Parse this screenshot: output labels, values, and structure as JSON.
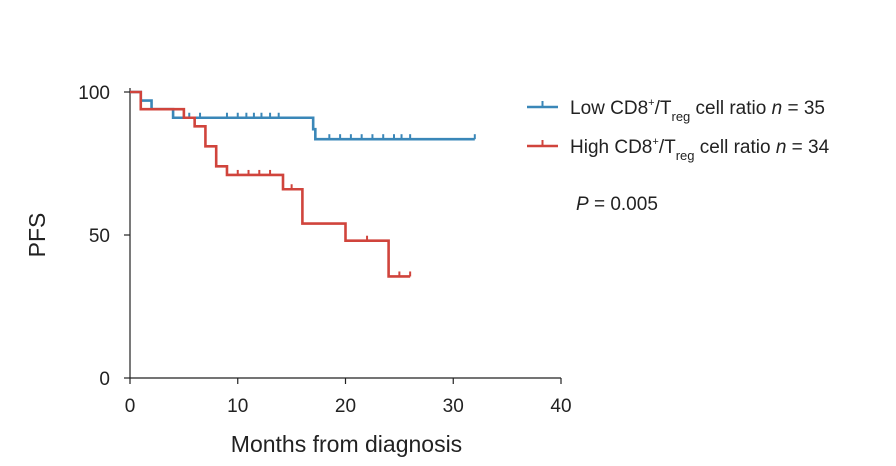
{
  "chart_data": {
    "type": "line",
    "subtype": "kaplan-meier",
    "title": "",
    "xlabel": "Months from diagnosis",
    "ylabel": "PFS",
    "xlim": [
      0,
      40
    ],
    "ylim": [
      0,
      100
    ],
    "xticks": [
      0,
      10,
      20,
      30,
      40
    ],
    "yticks": [
      0,
      50,
      100
    ],
    "xtick_labels": [
      "0",
      "10",
      "20",
      "30",
      "40"
    ],
    "ytick_labels": [
      "0",
      "50",
      "100"
    ],
    "grid": false,
    "legend_position": "top-right",
    "series": [
      {
        "name": "Low CD8+/Treg cell ratio n = 35",
        "legend_parts": {
          "pre": "Low CD8",
          "sup": "+",
          "slash": "/T",
          "sub": "reg",
          "post": " cell ratio ",
          "n_var": "n",
          "n_val": " = 35"
        },
        "color": "#3a87b8",
        "steps": [
          [
            0,
            100
          ],
          [
            1,
            97
          ],
          [
            2,
            94
          ],
          [
            4,
            91
          ],
          [
            16,
            91
          ],
          [
            17,
            87
          ],
          [
            17.2,
            83.5
          ],
          [
            32,
            83.5
          ]
        ],
        "censored": [
          [
            5.5,
            91
          ],
          [
            6.5,
            91
          ],
          [
            9,
            91
          ],
          [
            10,
            91
          ],
          [
            10.8,
            91
          ],
          [
            11.5,
            91
          ],
          [
            12.2,
            91
          ],
          [
            13,
            91
          ],
          [
            13.8,
            91
          ],
          [
            18.5,
            83.5
          ],
          [
            19.5,
            83.5
          ],
          [
            20.5,
            83.5
          ],
          [
            21.5,
            83.5
          ],
          [
            22.5,
            83.5
          ],
          [
            23.5,
            83.5
          ],
          [
            24.5,
            83.5
          ],
          [
            25.2,
            83.5
          ],
          [
            26,
            83.5
          ],
          [
            32,
            83.5
          ]
        ]
      },
      {
        "name": "High CD8+/Treg cell ratio n = 34",
        "legend_parts": {
          "pre": "High CD8",
          "sup": "+",
          "slash": "/T",
          "sub": "reg",
          "post": " cell ratio ",
          "n_var": "n",
          "n_val": " = 34"
        },
        "color": "#d0443c",
        "steps": [
          [
            0,
            100
          ],
          [
            1,
            94
          ],
          [
            4,
            94
          ],
          [
            5,
            91
          ],
          [
            6,
            88
          ],
          [
            7,
            81
          ],
          [
            8,
            74
          ],
          [
            9,
            71
          ],
          [
            14,
            71
          ],
          [
            14.2,
            66
          ],
          [
            16,
            66
          ],
          [
            16,
            54
          ],
          [
            20,
            54
          ],
          [
            20,
            48
          ],
          [
            24,
            48
          ],
          [
            24,
            35.5
          ],
          [
            26,
            35.5
          ]
        ],
        "censored": [
          [
            10,
            71
          ],
          [
            11,
            71
          ],
          [
            12,
            71
          ],
          [
            13,
            71
          ],
          [
            15,
            66
          ],
          [
            22,
            48
          ],
          [
            25,
            35.5
          ],
          [
            26,
            35.5
          ]
        ]
      }
    ],
    "annotations": [
      {
        "text_var": "P",
        "text_val": " = 0.005"
      }
    ]
  }
}
